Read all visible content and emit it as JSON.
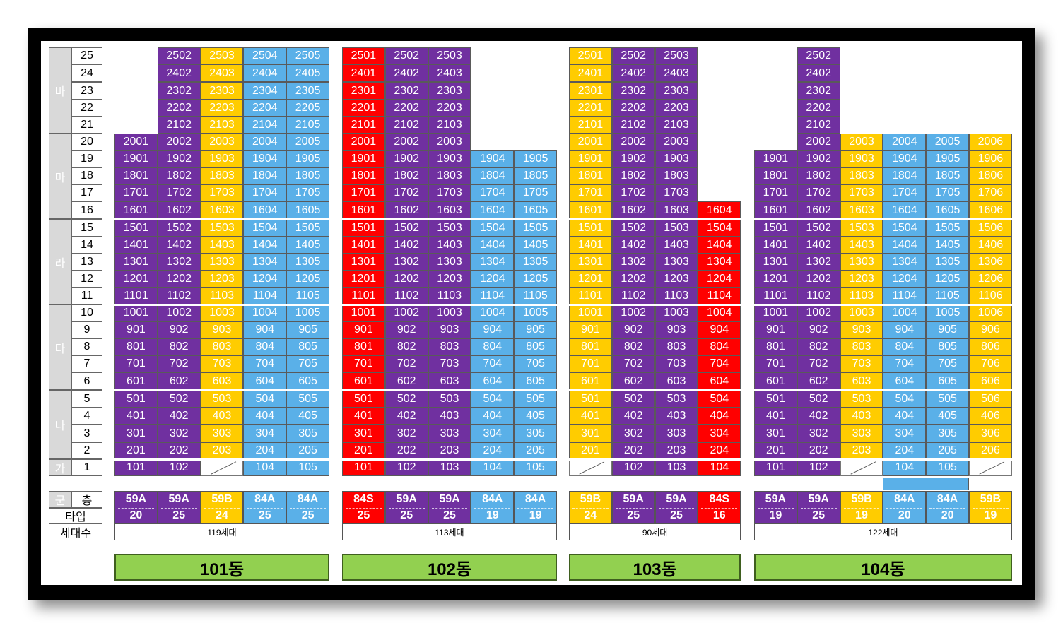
{
  "floor_groups": [
    {
      "label": "바",
      "from": 21,
      "to": 25
    },
    {
      "label": "마",
      "from": 16,
      "to": 20
    },
    {
      "label": "라",
      "from": 11,
      "to": 15
    },
    {
      "label": "다",
      "from": 6,
      "to": 10
    },
    {
      "label": "나",
      "from": 2,
      "to": 5
    },
    {
      "label": "가",
      "from": 1,
      "to": 1
    }
  ],
  "footer_labels": {
    "group": "군",
    "floor": "층",
    "type": "타입",
    "households": "세대수"
  },
  "colors": {
    "purple": "#7030a0",
    "yellow": "#ffcc00",
    "blue": "#5ab0e8",
    "red": "#ff0000",
    "green": "#92d050"
  },
  "buildings": [
    {
      "name": "101동",
      "total": "119세대",
      "columns": [
        {
          "line": 1,
          "color": "P",
          "type": "59A",
          "count": "20",
          "top": 20,
          "empty_floors": [],
          "cut_floors": []
        },
        {
          "line": 2,
          "color": "P",
          "type": "59A",
          "count": "25",
          "top": 25,
          "empty_floors": [],
          "cut_floors": []
        },
        {
          "line": 3,
          "color": "Y",
          "type": "59B",
          "count": "24",
          "top": 25,
          "empty_floors": [
            1
          ],
          "cut_floors": []
        },
        {
          "line": 4,
          "color": "B",
          "type": "84A",
          "count": "25",
          "top": 25,
          "empty_floors": [],
          "cut_floors": []
        },
        {
          "line": 5,
          "color": "B",
          "type": "84A",
          "count": "25",
          "top": 25,
          "empty_floors": [],
          "cut_floors": []
        }
      ]
    },
    {
      "name": "102동",
      "total": "113세대",
      "columns": [
        {
          "line": 1,
          "color": "R",
          "type": "84S",
          "count": "25",
          "top": 25,
          "empty_floors": [],
          "cut_floors": []
        },
        {
          "line": 2,
          "color": "P",
          "type": "59A",
          "count": "25",
          "top": 25,
          "empty_floors": [],
          "cut_floors": []
        },
        {
          "line": 3,
          "color": "P",
          "type": "59A",
          "count": "25",
          "top": 25,
          "empty_floors": [],
          "cut_floors": []
        },
        {
          "line": 4,
          "color": "B",
          "type": "84A",
          "count": "19",
          "top": 19,
          "empty_floors": [],
          "cut_floors": []
        },
        {
          "line": 5,
          "color": "B",
          "type": "84A",
          "count": "19",
          "top": 19,
          "empty_floors": [],
          "cut_floors": []
        }
      ]
    },
    {
      "name": "103동",
      "total": "90세대",
      "columns": [
        {
          "line": 1,
          "color": "Y",
          "type": "59B",
          "count": "24",
          "top": 25,
          "empty_floors": [
            1
          ],
          "cut_floors": []
        },
        {
          "line": 2,
          "color": "P",
          "type": "59A",
          "count": "25",
          "top": 25,
          "empty_floors": [],
          "cut_floors": []
        },
        {
          "line": 3,
          "color": "P",
          "type": "59A",
          "count": "25",
          "top": 25,
          "empty_floors": [],
          "cut_floors": []
        },
        {
          "line": 4,
          "color": "R",
          "type": "84S",
          "count": "16",
          "top": 16,
          "empty_floors": [],
          "cut_floors": []
        }
      ]
    },
    {
      "name": "104동",
      "total": "122세대",
      "columns": [
        {
          "line": 1,
          "color": "P",
          "type": "59A",
          "count": "19",
          "top": 19,
          "empty_floors": [],
          "cut_floors": []
        },
        {
          "line": 2,
          "color": "P",
          "type": "59A",
          "count": "25",
          "top": 25,
          "empty_floors": [],
          "cut_floors": []
        },
        {
          "line": 3,
          "color": "Y",
          "type": "59B",
          "count": "19",
          "top": 20,
          "empty_floors": [
            1
          ],
          "cut_floors": []
        },
        {
          "line": 4,
          "color": "B",
          "type": "84A",
          "count": "20",
          "top": 20,
          "empty_floors": [],
          "cut_floors": []
        },
        {
          "line": 5,
          "color": "B",
          "type": "84A",
          "count": "20",
          "top": 20,
          "empty_floors": [],
          "cut_floors": []
        },
        {
          "line": 6,
          "color": "Y",
          "type": "59B",
          "count": "19",
          "top": 20,
          "empty_floors": [
            1
          ],
          "cut_floors": []
        }
      ]
    }
  ]
}
